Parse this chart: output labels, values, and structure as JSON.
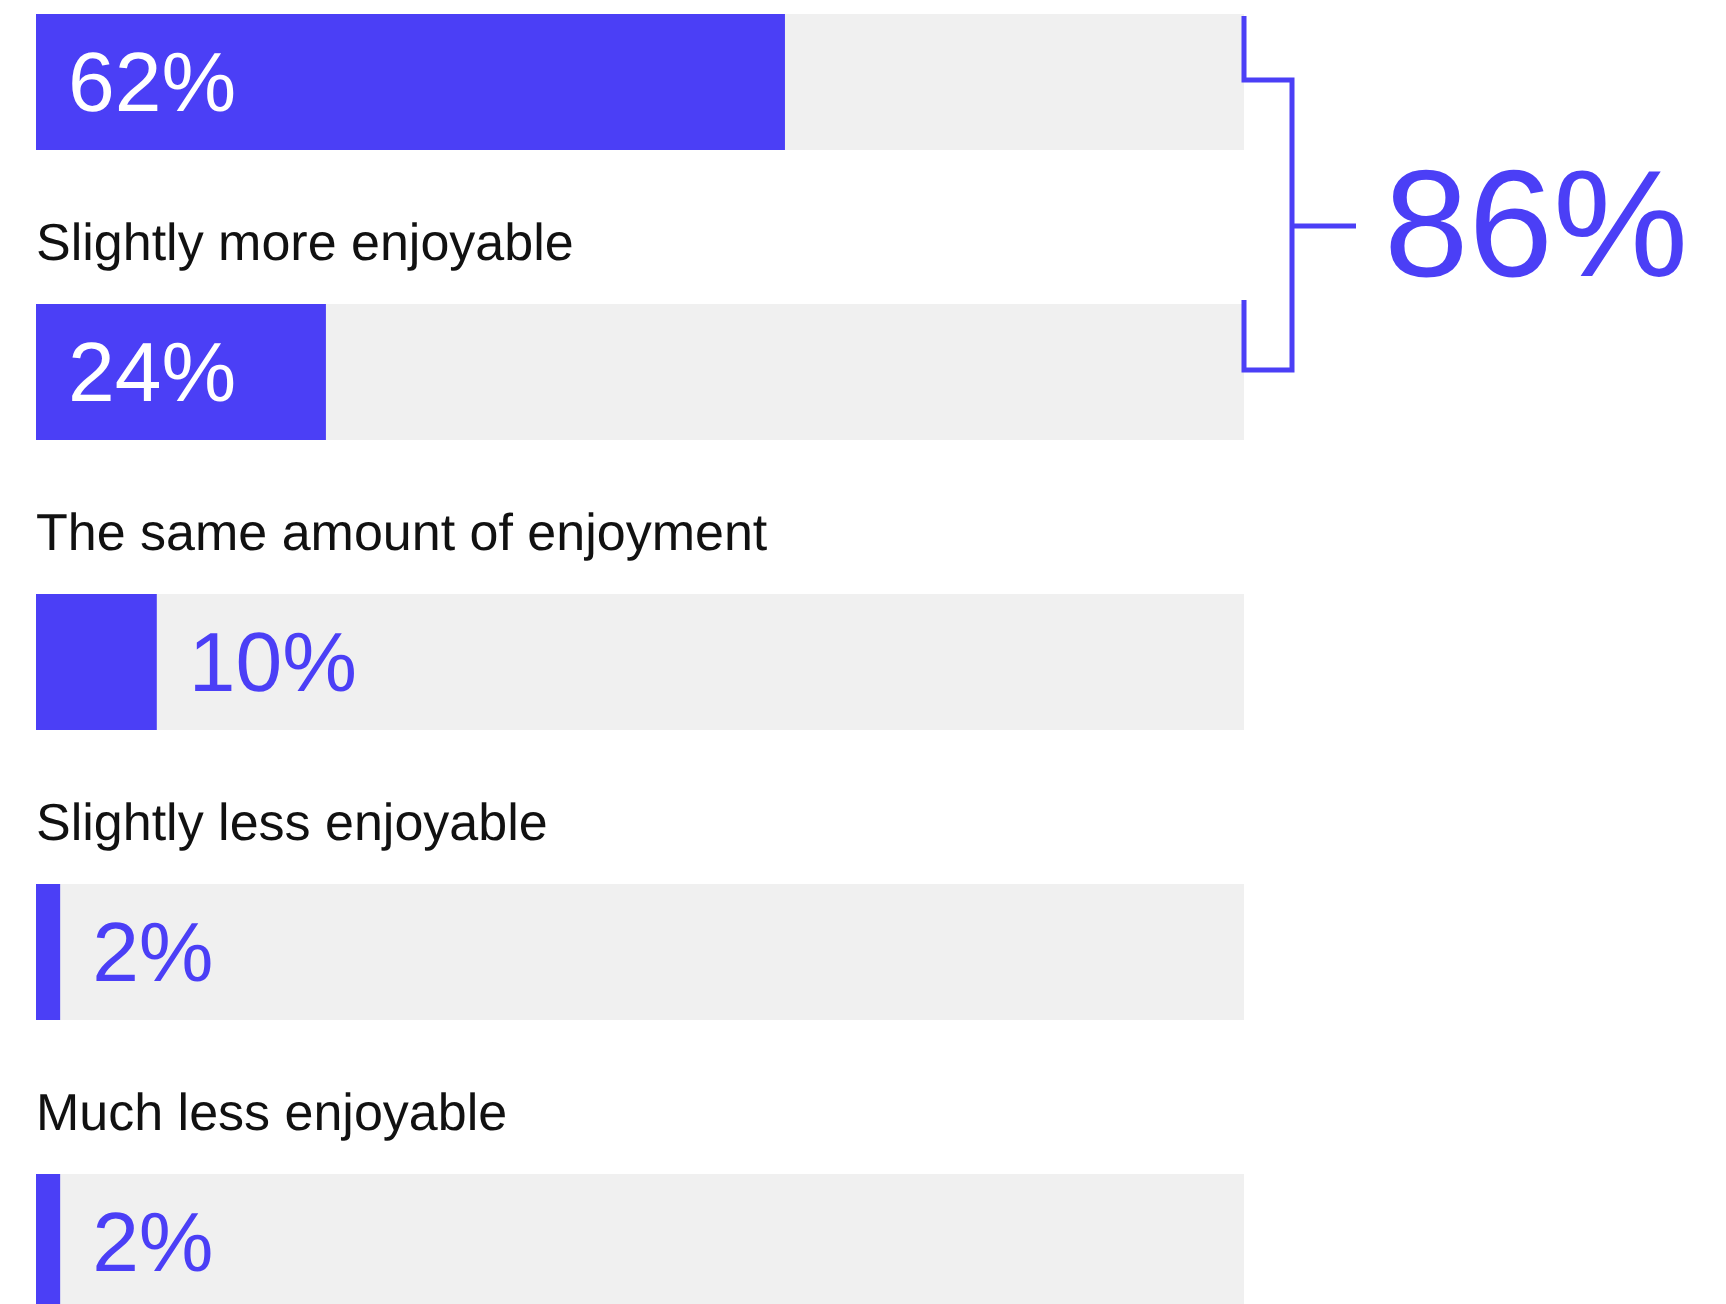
{
  "chart_data": {
    "type": "bar",
    "orientation": "horizontal",
    "categories": [
      null,
      "Slightly more enjoyable",
      "The same amount of enjoyment",
      "Slightly less enjoyable",
      "Much less enjoyable"
    ],
    "values": [
      62,
      24,
      10,
      2,
      2
    ],
    "value_labels": [
      "62%",
      "24%",
      "10%",
      "2%",
      "2%"
    ],
    "color": "#4b3ff6",
    "xlim": [
      0,
      100
    ],
    "tick_labels": false,
    "annotations": [
      "86%"
    ]
  }
}
